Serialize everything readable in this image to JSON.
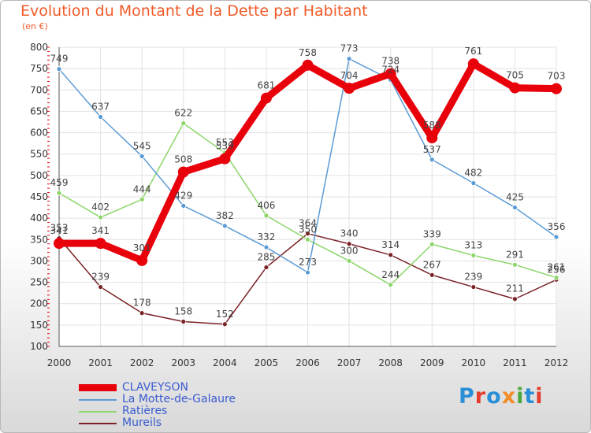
{
  "title": "Evolution du Montant de la Dette par Habitant",
  "subtitle": "(en €)",
  "logo": {
    "text": "Proxiti",
    "letter_colors": [
      "#2a8fd6",
      "#e53c2b",
      "#2a8fd6",
      "#f28c28",
      "#4aa83a",
      "#2a8fd6",
      "#e53c2b"
    ]
  },
  "chart_data": {
    "type": "line",
    "title": "Evolution du Montant de la Dette par Habitant",
    "ylabel": "(en €)",
    "xlabel": "",
    "x": [
      "2000",
      "2001",
      "2002",
      "2003",
      "2004",
      "2005",
      "2006",
      "2007",
      "2008",
      "2009",
      "2010",
      "2011",
      "2012"
    ],
    "ylim": [
      100,
      800
    ],
    "yticks": [
      100,
      150,
      200,
      250,
      300,
      350,
      400,
      450,
      500,
      550,
      600,
      650,
      700,
      750,
      800
    ],
    "grid": true,
    "legend_position": "bottom-left",
    "series": [
      {
        "name": "CLAVEYSON",
        "color": "#e8000b",
        "values": [
          341,
          341,
          301,
          508,
          539,
          681,
          758,
          704,
          738,
          588,
          761,
          705,
          703
        ],
        "labels": [
          "341",
          "341",
          "301",
          "508",
          "539",
          "681",
          "758",
          "704",
          "738",
          "588",
          "761",
          "705",
          "703"
        ]
      },
      {
        "name": "La Motte-de-Galaure",
        "color": "#5b9bd5",
        "values": [
          749,
          637,
          545,
          429,
          382,
          332,
          273,
          773,
          724,
          537,
          482,
          425,
          356
        ],
        "labels": [
          "749",
          "637",
          "545",
          "429",
          "382",
          "332",
          "273",
          "773",
          "724",
          "537",
          "482",
          "425",
          "356"
        ]
      },
      {
        "name": "Ratières",
        "color": "#8cd66a",
        "values": [
          459,
          402,
          444,
          622,
          553,
          406,
          350,
          300,
          244,
          339,
          313,
          291,
          261
        ],
        "labels": [
          "459",
          "402",
          "444",
          "622",
          "553",
          "406",
          "350",
          "300",
          "244",
          "339",
          "313",
          "291",
          "261"
        ]
      },
      {
        "name": "Mureils",
        "color": "#7a2226",
        "values": [
          353,
          239,
          178,
          158,
          152,
          285,
          364,
          340,
          314,
          267,
          239,
          211,
          256
        ],
        "labels": [
          "353",
          "239",
          "178",
          "158",
          "152",
          "285",
          "364",
          "340",
          "314",
          "267",
          "239",
          "211",
          "256"
        ]
      }
    ]
  }
}
